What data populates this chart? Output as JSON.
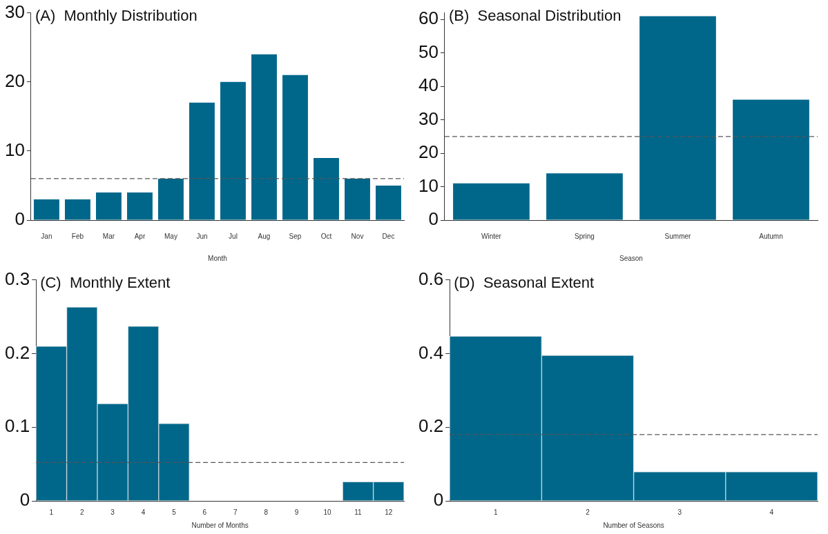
{
  "chart_data": [
    {
      "type": "bar",
      "title": "(A)  Monthly Distribution",
      "xlabel": "Month",
      "categories": [
        "Jan",
        "Feb",
        "Mar",
        "Apr",
        "May",
        "Jun",
        "Jul",
        "Aug",
        "Sep",
        "Oct",
        "Nov",
        "Dec"
      ],
      "values": [
        3,
        3,
        4,
        4,
        6,
        17,
        20,
        24,
        21,
        9,
        6,
        5
      ],
      "color": "#00678a",
      "ylim": [
        0,
        30
      ],
      "yticks": [
        0,
        10,
        20,
        30
      ],
      "grid": false,
      "legend": false,
      "ref_lines": [
        {
          "axis": "y",
          "value": 6,
          "color": "#555555",
          "line_style": "dashed"
        }
      ]
    },
    {
      "type": "bar",
      "title": "(B)  Seasonal Distribution",
      "xlabel": "Season",
      "categories": [
        "Winter",
        "Spring",
        "Summer",
        "Autumn"
      ],
      "values": [
        11,
        14,
        61,
        36
      ],
      "color": "#00678a",
      "ylim": [
        0,
        62
      ],
      "yticks": [
        0,
        10,
        20,
        30,
        40,
        50,
        60
      ],
      "grid": false,
      "legend": false,
      "ref_lines": [
        {
          "axis": "y",
          "value": 25,
          "color": "#555555",
          "line_style": "dashed"
        }
      ]
    },
    {
      "type": "histogram",
      "title": "(C)  Monthly Extent",
      "xlabel": "Number of Months",
      "bins": [
        0.5,
        1.5,
        2.5,
        3.5,
        4.5,
        5.5,
        6.5,
        7.5,
        8.5,
        9.5,
        10.5,
        11.5,
        12.5
      ],
      "values": [
        0.21,
        0.263,
        0.132,
        0.237,
        0.105,
        0,
        0,
        0,
        0,
        0,
        0.026,
        0.026
      ],
      "color": "#00678a",
      "xlim": [
        0.5,
        12.5
      ],
      "xticks": [
        1,
        2,
        3,
        4,
        5,
        6,
        7,
        8,
        9,
        10,
        11,
        12
      ],
      "ylim": [
        0,
        0.3
      ],
      "yticks": [
        0,
        0.1,
        0.2,
        0.3
      ],
      "grid": false,
      "legend": false,
      "ref_lines": [
        {
          "axis": "y",
          "value": 0.052,
          "color": "#555555",
          "line_style": "dashed"
        }
      ]
    },
    {
      "type": "histogram",
      "title": "(D)  Seasonal Extent",
      "xlabel": "Number of Seasons",
      "bins": [
        0.5,
        1.5,
        2.5,
        3.5,
        4.5
      ],
      "values": [
        0.447,
        0.395,
        0.079,
        0.079
      ],
      "color": "#00678a",
      "xlim": [
        0.5,
        4.5
      ],
      "xticks": [
        1,
        2,
        3,
        4
      ],
      "ylim": [
        0,
        0.6
      ],
      "yticks": [
        0,
        0.2,
        0.4,
        0.6
      ],
      "grid": false,
      "legend": false,
      "ref_lines": [
        {
          "axis": "y",
          "value": 0.18,
          "color": "#555555",
          "line_style": "dashed"
        }
      ]
    }
  ]
}
